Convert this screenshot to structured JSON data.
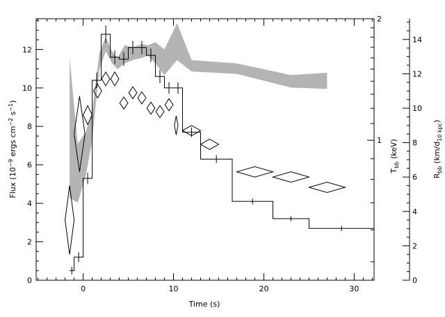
{
  "chart_data": {
    "type": "line",
    "xlabel": "Time (s)",
    "ylabel_left": "Flux (10^-9 ergs cm^-2 s^-1)",
    "ylabel_t": "T_bb (keV)",
    "ylabel_r": "R_bb (km/d_10 kpc)",
    "xlim": [
      -5.2,
      32.2
    ],
    "ylim_left": [
      0,
      13.6
    ],
    "ylim_t": [
      0.45,
      2.0
    ],
    "t_scale": "log",
    "ylim_r": [
      0,
      15.2
    ],
    "x_ticks": [
      0,
      10,
      20,
      30
    ],
    "y_ticks_left": [
      0,
      2,
      4,
      6,
      8,
      10,
      12
    ],
    "t_ticks": [
      1,
      2
    ],
    "r_ticks": [
      0,
      2,
      4,
      6,
      8,
      10,
      12,
      14
    ],
    "x_tick_labels": [
      "0",
      "10",
      "20",
      "30"
    ],
    "y_tick_labels_left": [
      "0",
      "2",
      "4",
      "6",
      "8",
      "10",
      "12"
    ],
    "t_tick_labels": [
      "1",
      "2"
    ],
    "r_tick_labels": [
      "0",
      "2",
      "4",
      "6",
      "8",
      "10",
      "12",
      "14"
    ],
    "grid": false,
    "legend": "none",
    "series": [
      {
        "type": "step",
        "axis": "left",
        "points": [
          {
            "x0": -1.5,
            "x1": -1.0,
            "y": 0.5,
            "err": 0.2
          },
          {
            "x0": -1.0,
            "x1": 0.0,
            "y": 1.2,
            "err": 0.25
          },
          {
            "x0": 0.0,
            "x1": 1.0,
            "y": 5.3,
            "err": 0.3
          },
          {
            "x0": 1.0,
            "x1": 2.0,
            "y": 10.4,
            "err": 0.4
          },
          {
            "x0": 2.0,
            "x1": 3.0,
            "y": 12.8,
            "err": 0.45
          },
          {
            "x0": 3.0,
            "x1": 4.0,
            "y": 11.6,
            "err": 0.35
          },
          {
            "x0": 4.0,
            "x1": 5.0,
            "y": 11.5,
            "err": 0.35
          },
          {
            "x0": 5.0,
            "x1": 6.0,
            "y": 12.1,
            "err": 0.35
          },
          {
            "x0": 6.0,
            "x1": 7.0,
            "y": 12.1,
            "err": 0.35
          },
          {
            "x0": 7.0,
            "x1": 8.0,
            "y": 11.7,
            "err": 0.35
          },
          {
            "x0": 8.0,
            "x1": 9.0,
            "y": 10.6,
            "err": 0.35
          },
          {
            "x0": 9.0,
            "x1": 10.0,
            "y": 10.0,
            "err": 0.3
          },
          {
            "x0": 10.0,
            "x1": 11.0,
            "y": 10.0,
            "err": 0.3
          },
          {
            "x0": 11.0,
            "x1": 13.0,
            "y": 7.7,
            "err": 0.25
          },
          {
            "x0": 13.0,
            "x1": 16.5,
            "y": 6.3,
            "err": 0.2
          },
          {
            "x0": 16.5,
            "x1": 21.0,
            "y": 4.1,
            "err": 0.15
          },
          {
            "x0": 21.0,
            "x1": 25.0,
            "y": 3.2,
            "err": 0.12
          },
          {
            "x0": 25.0,
            "x1": 32.2,
            "y": 2.7,
            "err": 0.1
          }
        ]
      },
      {
        "type": "band",
        "axis": "t",
        "points": [
          {
            "x": -1.5,
            "lo": 0.72,
            "hi": 1.6
          },
          {
            "x": -0.6,
            "lo": 0.7,
            "hi": 0.98
          },
          {
            "x": 0.3,
            "lo": 0.82,
            "hi": 1.05
          },
          {
            "x": 1.0,
            "lo": 1.0,
            "hi": 1.18
          },
          {
            "x": 1.8,
            "lo": 1.5,
            "hi": 1.65
          },
          {
            "x": 2.5,
            "lo": 1.66,
            "hi": 1.8
          },
          {
            "x": 3.2,
            "lo": 1.55,
            "hi": 1.66
          },
          {
            "x": 3.8,
            "lo": 1.5,
            "hi": 1.6
          },
          {
            "x": 4.6,
            "lo": 1.55,
            "hi": 1.72
          },
          {
            "x": 5.5,
            "lo": 1.58,
            "hi": 1.7
          },
          {
            "x": 6.5,
            "lo": 1.6,
            "hi": 1.73
          },
          {
            "x": 7.2,
            "lo": 1.62,
            "hi": 1.72
          },
          {
            "x": 8.0,
            "lo": 1.55,
            "hi": 1.75
          },
          {
            "x": 9.0,
            "lo": 1.45,
            "hi": 1.68
          },
          {
            "x": 10.4,
            "lo": 1.58,
            "hi": 1.95
          },
          {
            "x": 12.0,
            "lo": 1.48,
            "hi": 1.58
          },
          {
            "x": 17.0,
            "lo": 1.46,
            "hi": 1.55
          },
          {
            "x": 23.0,
            "lo": 1.35,
            "hi": 1.45
          },
          {
            "x": 27.0,
            "lo": 1.34,
            "hi": 1.47
          }
        ]
      },
      {
        "type": "diamonds",
        "axis": "r",
        "points": [
          {
            "x": -1.5,
            "y": 3.5,
            "xerr": 0.5,
            "yerr": 2.0
          },
          {
            "x": -0.4,
            "y": 8.5,
            "xerr": 0.6,
            "yerr": 2.2
          },
          {
            "x": 0.5,
            "y": 9.6,
            "xerr": 0.5,
            "yerr": 0.55
          },
          {
            "x": 1.6,
            "y": 11.0,
            "xerr": 0.45,
            "yerr": 0.4
          },
          {
            "x": 2.5,
            "y": 11.7,
            "xerr": 0.45,
            "yerr": 0.4
          },
          {
            "x": 3.5,
            "y": 11.7,
            "xerr": 0.45,
            "yerr": 0.4
          },
          {
            "x": 4.5,
            "y": 10.3,
            "xerr": 0.45,
            "yerr": 0.35
          },
          {
            "x": 5.5,
            "y": 10.9,
            "xerr": 0.45,
            "yerr": 0.35
          },
          {
            "x": 6.5,
            "y": 10.6,
            "xerr": 0.45,
            "yerr": 0.35
          },
          {
            "x": 7.5,
            "y": 10.0,
            "xerr": 0.45,
            "yerr": 0.35
          },
          {
            "x": 8.5,
            "y": 9.8,
            "xerr": 0.45,
            "yerr": 0.35
          },
          {
            "x": 9.5,
            "y": 10.2,
            "xerr": 0.45,
            "yerr": 0.35
          },
          {
            "x": 10.3,
            "y": 9.0,
            "xerr": 0.2,
            "yerr": 0.55
          },
          {
            "x": 12.0,
            "y": 8.7,
            "xerr": 1.0,
            "yerr": 0.3
          },
          {
            "x": 14.0,
            "y": 7.9,
            "xerr": 1.0,
            "yerr": 0.3
          },
          {
            "x": 19.0,
            "y": 6.3,
            "xerr": 2.0,
            "yerr": 0.3
          },
          {
            "x": 23.0,
            "y": 6.0,
            "xerr": 2.0,
            "yerr": 0.3
          },
          {
            "x": 27.0,
            "y": 5.4,
            "xerr": 2.0,
            "yerr": 0.3
          }
        ]
      }
    ]
  }
}
